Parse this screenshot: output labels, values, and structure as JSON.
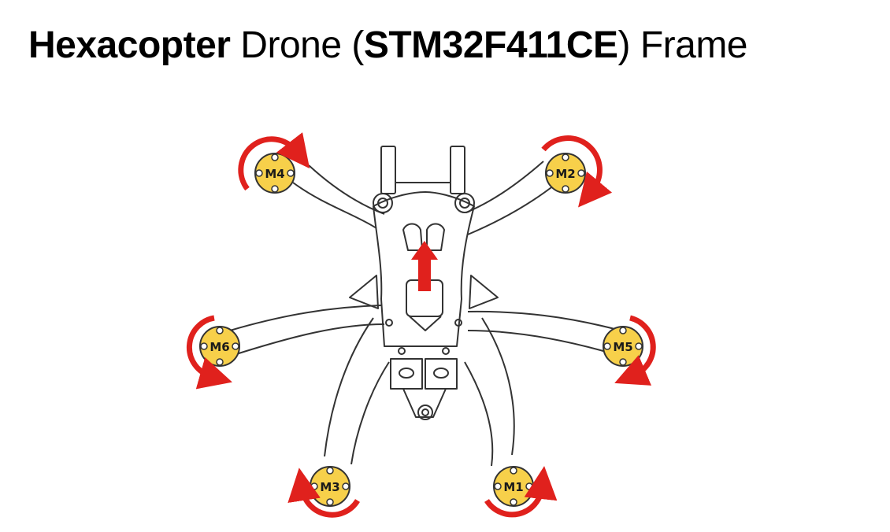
{
  "title": {
    "part1": "Hexacopter",
    "part2": " Drone (",
    "part3": "STM32F411CE",
    "part4": ") Frame"
  },
  "motors": [
    {
      "id": "m4",
      "label": "M4",
      "rotation": "counter-clockwise"
    },
    {
      "id": "m2",
      "label": "M2",
      "rotation": "clockwise"
    },
    {
      "id": "m6",
      "label": "M6",
      "rotation": "counter-clockwise"
    },
    {
      "id": "m5",
      "label": "M5",
      "rotation": "clockwise"
    },
    {
      "id": "m3",
      "label": "M3",
      "rotation": "clockwise"
    },
    {
      "id": "m1",
      "label": "M1",
      "rotation": "counter-clockwise"
    }
  ],
  "colors": {
    "motor_fill": "#f7d04a",
    "arrow": "#e0211d",
    "frame_stroke": "#333333"
  }
}
